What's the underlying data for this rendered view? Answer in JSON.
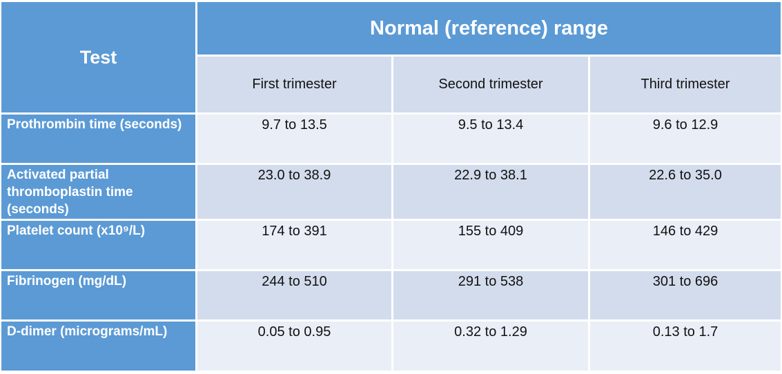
{
  "theme": {
    "blue": "#5b9ad5",
    "band": "#d3dcec",
    "light": "#eaeef7",
    "ink": "#111111"
  },
  "table": {
    "test_header": "Test",
    "range_header": "Normal (reference) range",
    "column_headers": [
      "First trimester",
      "Second trimester",
      "Third trimester"
    ],
    "rows": [
      {
        "label": "Prothrombin time (seconds)",
        "values": [
          "9.7 to 13.5",
          "9.5 to 13.4",
          "9.6 to 12.9"
        ]
      },
      {
        "label": "Activated partial thromboplastin time (seconds)",
        "values": [
          "23.0 to 38.9",
          "22.9 to 38.1",
          "22.6 to 35.0"
        ]
      },
      {
        "label": "Platelet count (x10⁹/L)",
        "values": [
          "174 to 391",
          "155 to 409",
          "146 to 429"
        ]
      },
      {
        "label": "Fibrinogen (mg/dL)",
        "values": [
          "244 to 510",
          "291 to 538",
          "301 to 696"
        ]
      },
      {
        "label": "D-dimer (micrograms/mL)",
        "values": [
          "0.05 to 0.95",
          "0.32 to 1.29",
          "0.13 to 1.7"
        ]
      }
    ]
  }
}
